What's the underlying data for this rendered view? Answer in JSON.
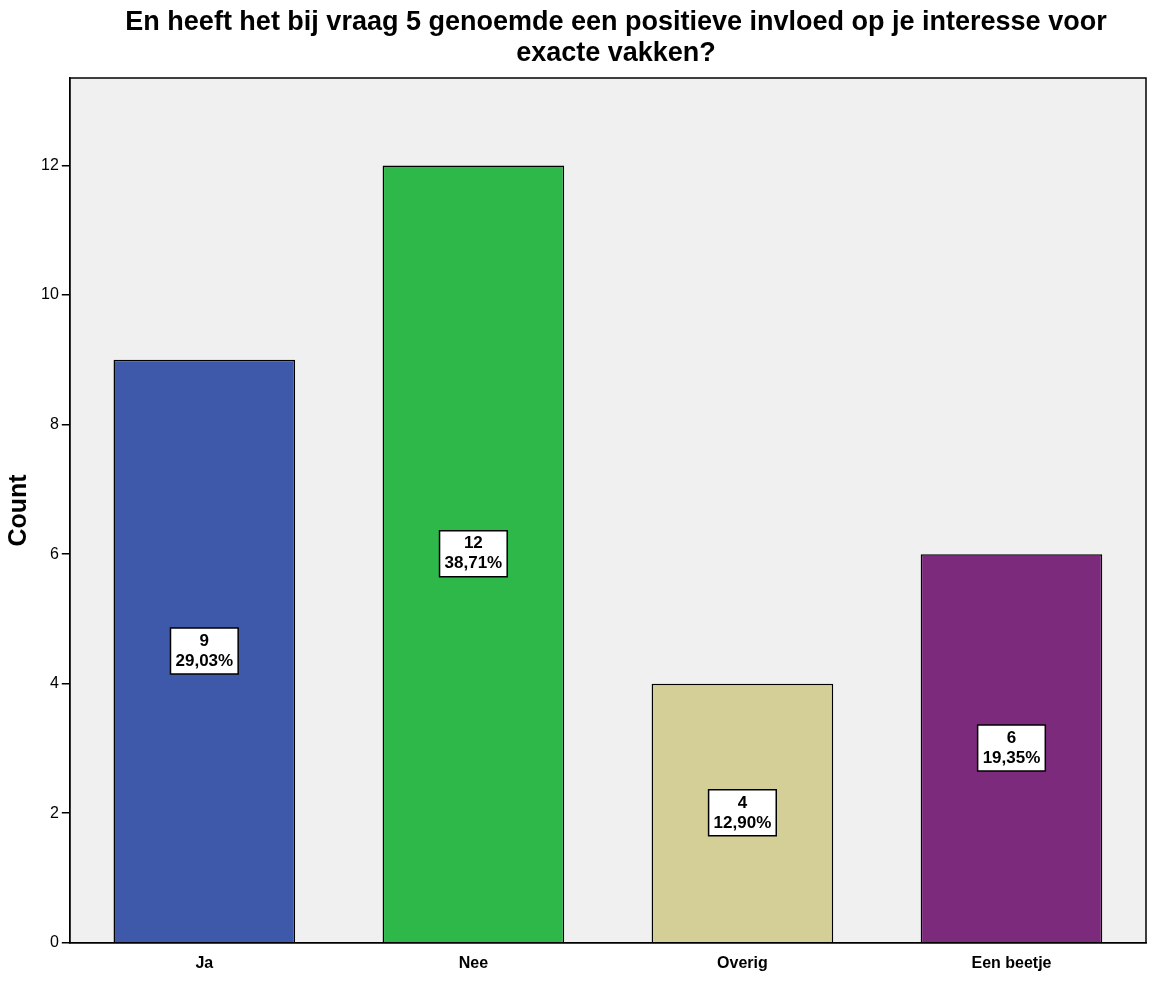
{
  "chart_data": {
    "type": "bar",
    "title": "En heeft het bij vraag 5 genoemde een positieve invloed op je interesse voor exacte vakken?",
    "ylabel": "Count",
    "categories": [
      "Ja",
      "Nee",
      "Overig",
      "Een beetje"
    ],
    "values": [
      9,
      12,
      4,
      6
    ],
    "colors": [
      "#3f59aa",
      "#2fb84a",
      "#d4cf97",
      "#7c2a7c"
    ],
    "value_labels": [
      "9\n29,03%",
      "12\n38,71%",
      "4\n12,90%",
      "6\n19,35%"
    ],
    "ylim": [
      0,
      13.35
    ],
    "yticks": [
      0,
      2,
      4,
      6,
      8,
      10,
      12
    ],
    "grid": false,
    "legend": false
  }
}
